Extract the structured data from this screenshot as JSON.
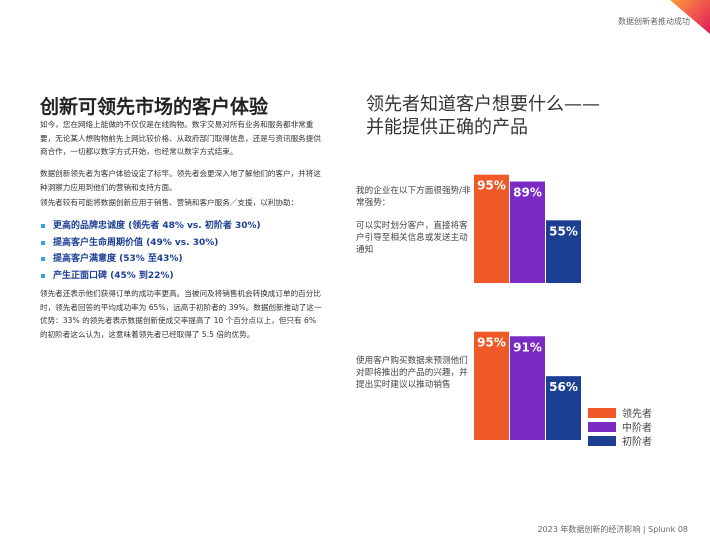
{
  "header": {
    "running_title": "数据创新者推动成功"
  },
  "title": "创新可领先市场的客户体验",
  "paragraphs": [
    "如今，您在网络上能做的不仅仅是在线购物。数字交易对所有业务和服务都非常重要，无论某人想购物前先上网比较价格、从政府部门取得信息，还是与资讯服务提供商合作，一切都以数字方式开始，也经常以数字方式结束。",
    "数据创新领先者为客户体验设定了标竿。领先者会更深入地了解他们的客户，并将这种洞察力应用到他们的营销和支持方面。",
    "领先者较有可能将数据创新应用于销售、营销和客户服务／支援，以利协助："
  ],
  "bullets": [
    "更高的品牌忠诚度 (领先者 48% vs. 初阶者 30%)",
    "提高客户生命周期价值 (49% vs. 30%)",
    "提高客户满意度 (53% 至43%)",
    "产生正面口碑 (45% 到22%)"
  ],
  "closing": "领先者还表示他们获得订单的成功率更高。当被问及将销售机会转换成订单的百分比时，领先者回答的平均成功率为 65%，远高于初阶者的 39%。数据创新推动了这一优势：33% 的领先者表示数据创新使成交率提高了 10 个百分点以上，但只有 6% 的初阶者这么认为，这意味着领先者已经取得了 5.5 倍的优势。",
  "chart_heading": [
    "领先者知道客户想要什么——",
    "并能提供正确的产品"
  ],
  "chart_data": {
    "type": "bar",
    "subtitle": "我的企业在以下方面很强势/非常强势：",
    "categories": [
      "可以实时划分客户，直接将客户引导至相关信息或发送主动通知",
      "使用客户购买数据来预测他们对即将推出的产品的兴趣，并提出实时建议以推动销售"
    ],
    "series": [
      {
        "name": "领先者",
        "color": "#ef5a28",
        "values": [
          95,
          95
        ],
        "value_labels": [
          "95%",
          "95%"
        ]
      },
      {
        "name": "中阶者",
        "color": "#7a2bc4",
        "values": [
          89,
          91
        ],
        "value_labels": [
          "89%",
          "91%"
        ]
      },
      {
        "name": "初阶者",
        "color": "#1c3f94",
        "values": [
          55,
          56
        ],
        "value_labels": [
          "55%",
          "56%"
        ]
      }
    ],
    "ylim": [
      0,
      100
    ]
  },
  "footer": "2023 年数据创新的经济影响 | Splunk  08"
}
